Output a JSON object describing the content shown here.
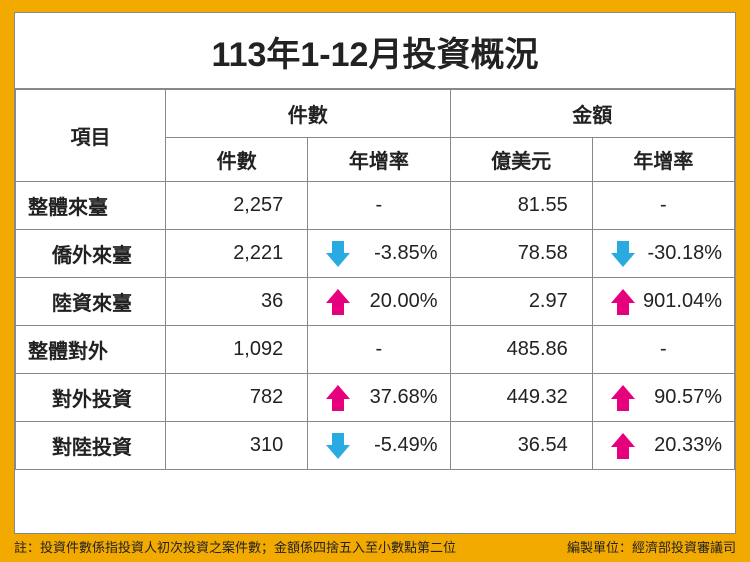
{
  "title": "113年1-12月投資概況",
  "colors": {
    "outer_bg": "#f2a900",
    "card_bg": "#ffffff",
    "border": "#888888",
    "text": "#222222",
    "arrow_up": "#e6007e",
    "arrow_down": "#29abe2"
  },
  "headers": {
    "item": "項目",
    "count_group": "件數",
    "amount_group": "金額",
    "count": "件數",
    "count_rate": "年增率",
    "amount": "億美元",
    "amount_rate": "年增率"
  },
  "rows": [
    {
      "item": "整體來臺",
      "indent": false,
      "count": "2,257",
      "count_rate": "-",
      "count_dir": "none",
      "amount": "81.55",
      "amount_rate": "-",
      "amount_dir": "none"
    },
    {
      "item": "僑外來臺",
      "indent": true,
      "count": "2,221",
      "count_rate": "-3.85%",
      "count_dir": "down",
      "amount": "78.58",
      "amount_rate": "-30.18%",
      "amount_dir": "down"
    },
    {
      "item": "陸資來臺",
      "indent": true,
      "count": "36",
      "count_rate": "20.00%",
      "count_dir": "up",
      "amount": "2.97",
      "amount_rate": "901.04%",
      "amount_dir": "up"
    },
    {
      "item": "整體對外",
      "indent": false,
      "count": "1,092",
      "count_rate": "-",
      "count_dir": "none",
      "amount": "485.86",
      "amount_rate": "-",
      "amount_dir": "none"
    },
    {
      "item": "對外投資",
      "indent": true,
      "count": "782",
      "count_rate": "37.68%",
      "count_dir": "up",
      "amount": "449.32",
      "amount_rate": "90.57%",
      "amount_dir": "up"
    },
    {
      "item": "對陸投資",
      "indent": true,
      "count": "310",
      "count_rate": "-5.49%",
      "count_dir": "down",
      "amount": "36.54",
      "amount_rate": "20.33%",
      "amount_dir": "up"
    }
  ],
  "footer": {
    "note": "註：投資件數係指投資人初次投資之案件數；金額係四捨五入至小數點第二位",
    "source": "編製單位：經濟部投資審議司"
  }
}
